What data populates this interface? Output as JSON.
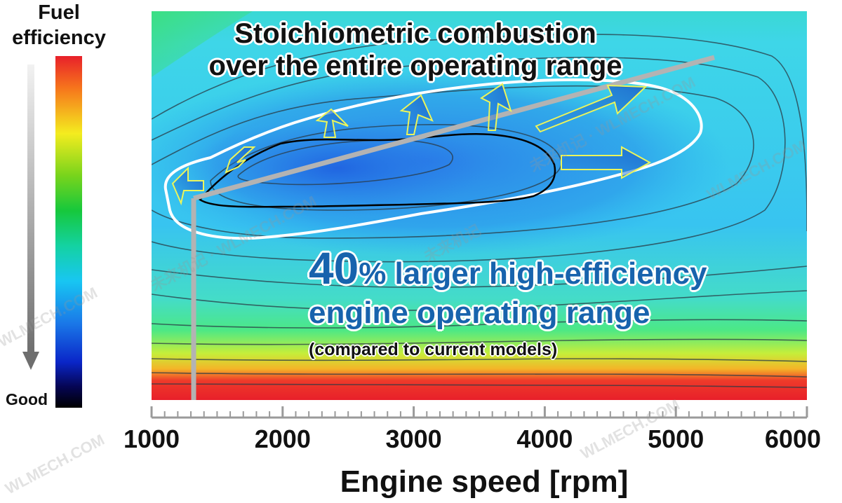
{
  "chart_data": {
    "type": "heatmap",
    "x": {
      "label": "Engine speed [rpm]",
      "min": 1000,
      "max": 6000,
      "ticks": [
        1000,
        2000,
        3000,
        4000,
        5000,
        6000
      ],
      "tick_labels": [
        "1000",
        "2000",
        "3000",
        "4000",
        "5000",
        "6000"
      ]
    },
    "y": {
      "label": "",
      "ticks": []
    },
    "colorbar": {
      "title": "Fuel efficiency",
      "bottom_label": "Good",
      "colors_top_to_bottom": [
        "#e8202a",
        "#f6741c",
        "#f4ec1f",
        "#16c83c",
        "#18c6f2",
        "#1a78e8",
        "#0a26c8",
        "#000000"
      ]
    },
    "regions": [
      {
        "name": "expanded high-efficiency range",
        "outline_color": "#ffffff",
        "x_range": [
          1100,
          5400
        ]
      },
      {
        "name": "current high-efficiency range",
        "outline_color": "#000000",
        "x_range": [
          1400,
          4050
        ]
      }
    ],
    "stoichiometric_line": {
      "color": "#b3b3b3",
      "x_start": 1300,
      "x_end": 5300
    },
    "annotations": [
      "Stoichiometric combustion over the entire operating range",
      "40% larger high-efficiency engine operating range",
      "(compared to current models)"
    ],
    "grid": false
  },
  "text": {
    "legend_title_line1": "Fuel",
    "legend_title_line2": "efficiency",
    "legend_bottom": "Good",
    "annotation_top_line1": "Stoichiometric combustion",
    "annotation_top_line2": "over the entire operating range",
    "annotation_big_pct": "40",
    "annotation_big_pct_sign": "%",
    "annotation_big_line1_rest": " larger high-efficiency",
    "annotation_big_line2": "engine operating range",
    "annotation_small": "(compared to current models)",
    "x_title": "Engine speed [rpm]"
  },
  "watermarks": [
    "WLMECH.COM",
    "未来机记 · WLMECH.COM",
    "WLMECH.COM",
    "未来机记 · WLMECH.COM",
    "WLMECH.COM",
    "WLMECH.COM",
    "未来机记"
  ]
}
